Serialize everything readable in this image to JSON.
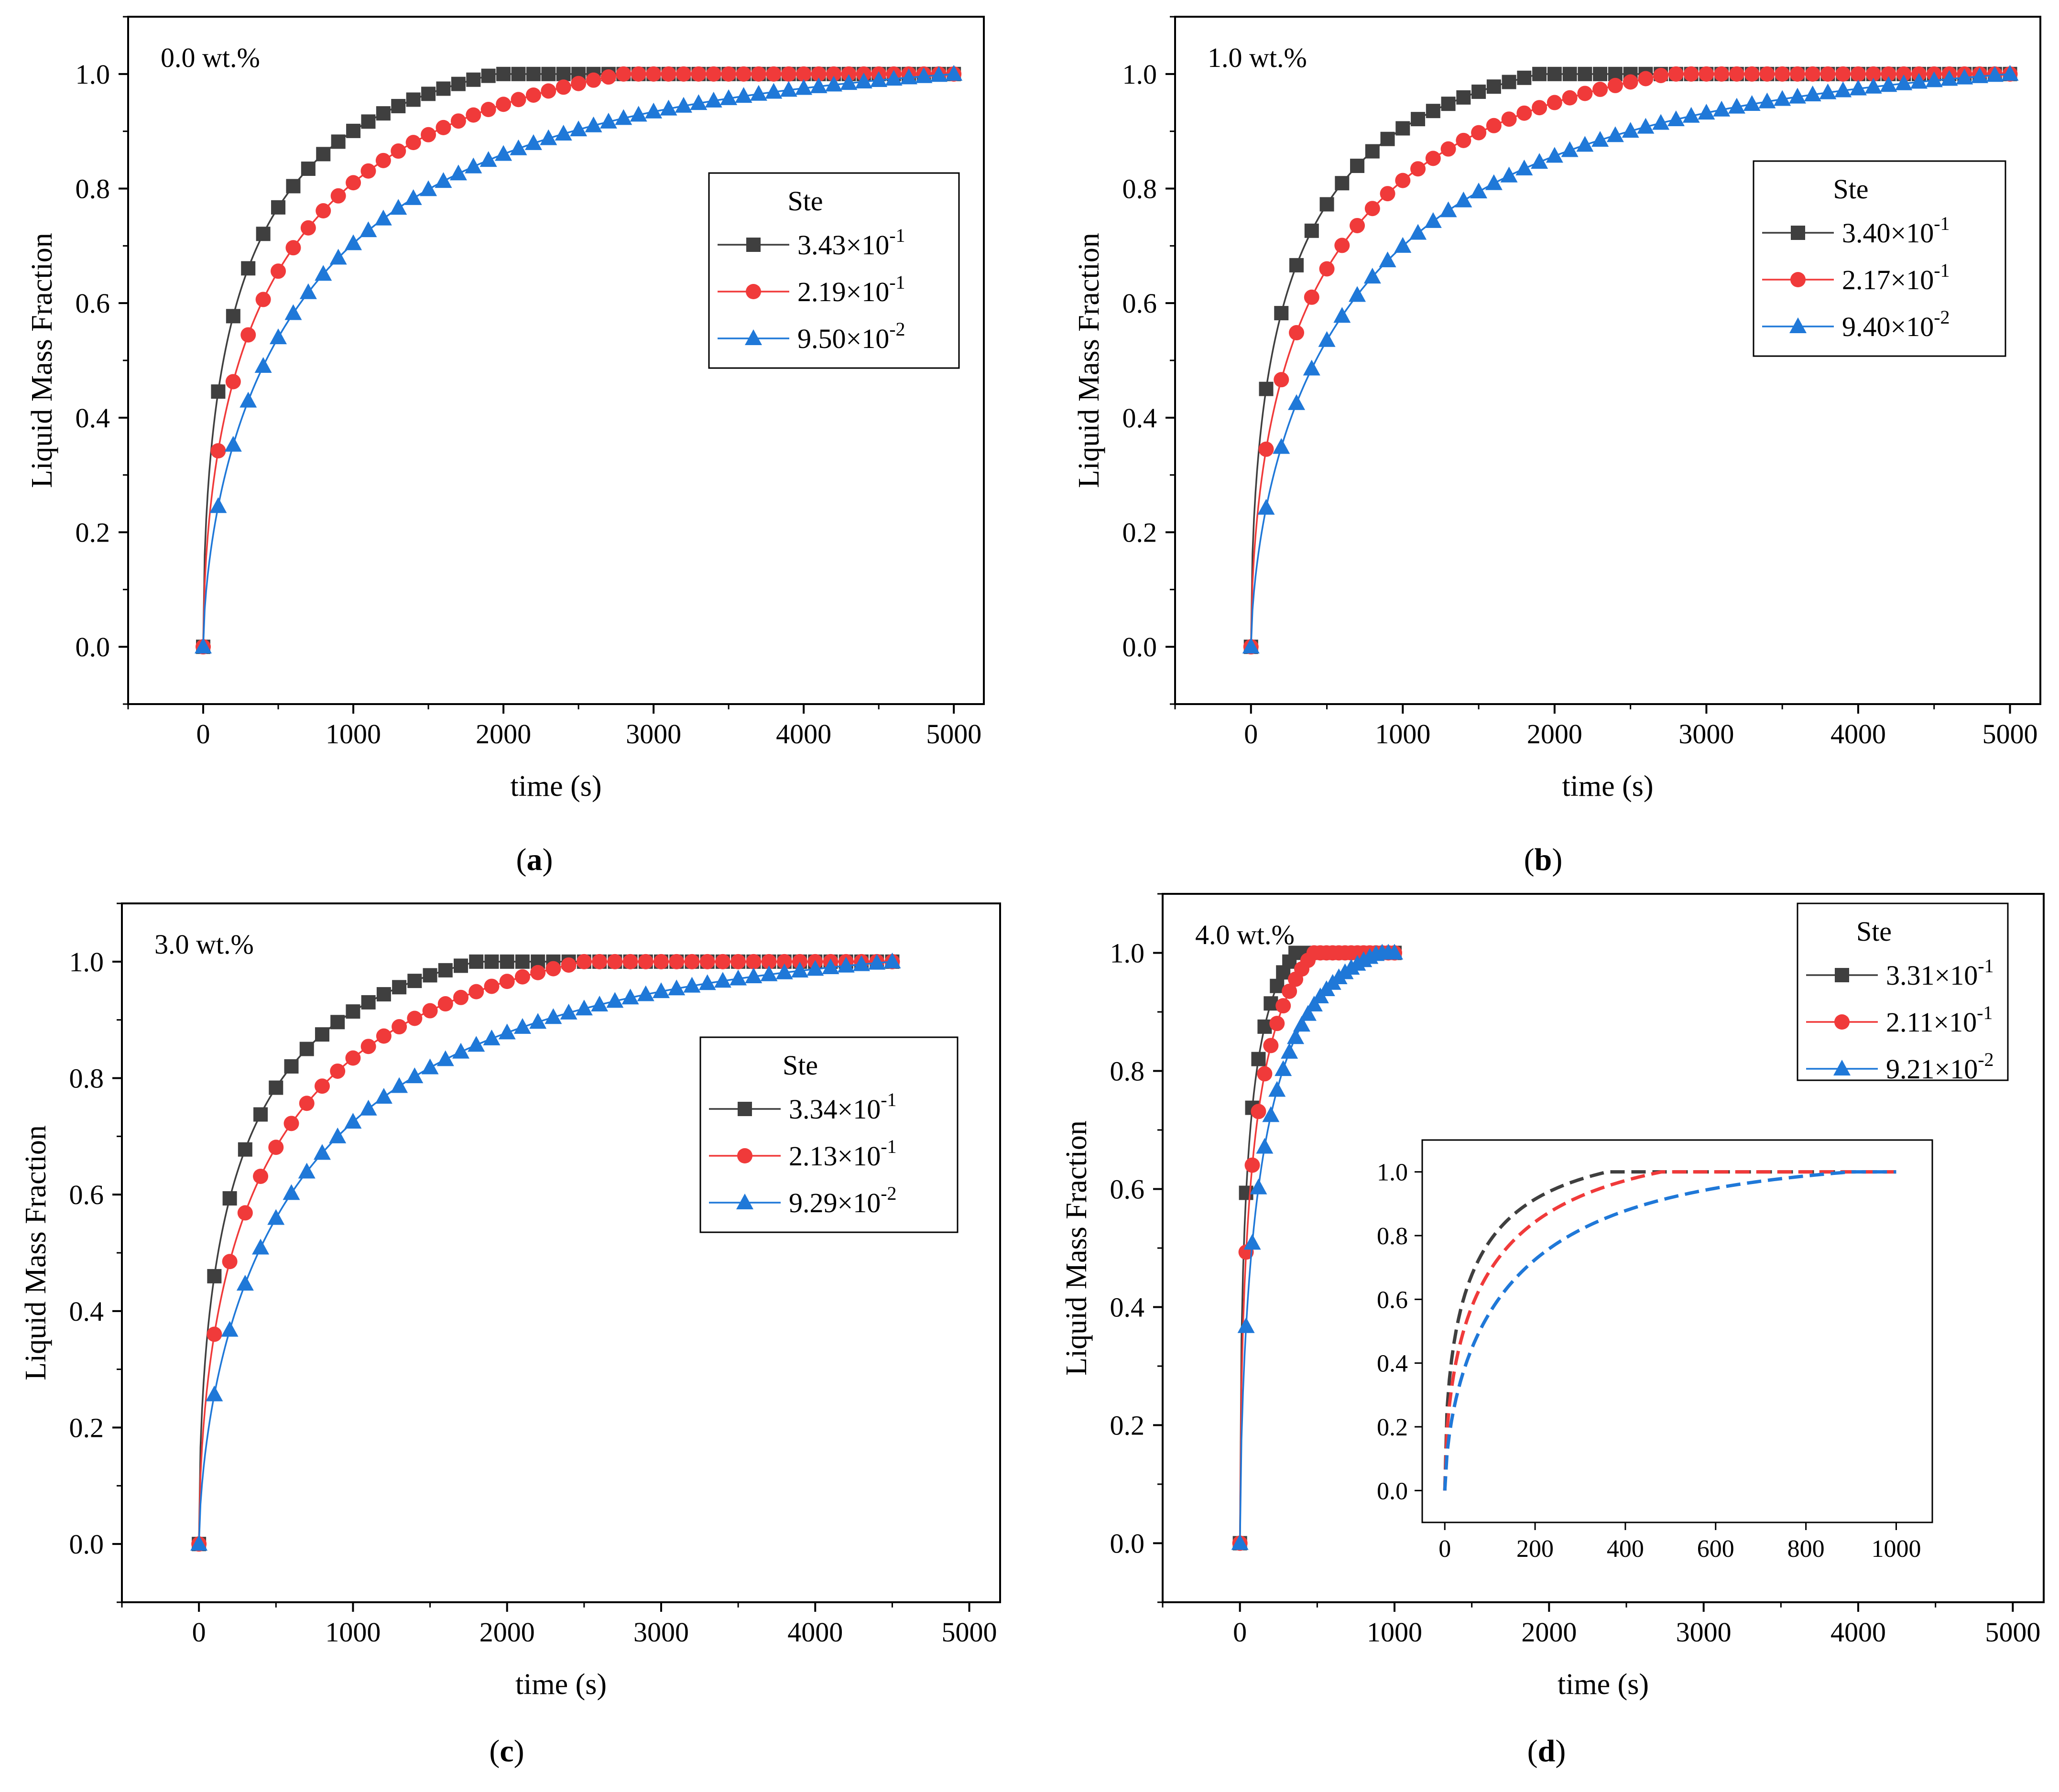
{
  "panels": [
    {
      "id": "a",
      "label_open": "(",
      "label_letter": "a",
      "label_close": ")",
      "annotation": "0.0 wt.%"
    },
    {
      "id": "b",
      "label_open": "(",
      "label_letter": "b",
      "label_close": ")",
      "annotation": "1.0 wt.%"
    },
    {
      "id": "c",
      "label_open": "(",
      "label_letter": "c",
      "label_close": ")",
      "annotation": "3.0 wt.%"
    },
    {
      "id": "d",
      "label_open": "(",
      "label_letter": "d",
      "label_close": ")",
      "annotation": "4.0 wt.%"
    }
  ],
  "colors": {
    "black": "#3f3f3f",
    "red": "#f03a3a",
    "blue": "#1f78d8"
  },
  "chart_data": [
    {
      "type": "line",
      "panel": "a",
      "xlabel": "time (s)",
      "ylabel": "Liquid Mass Fraction",
      "xlim": [
        -500,
        5200
      ],
      "ylim": [
        -0.1,
        1.1
      ],
      "xticks": [
        0,
        1000,
        2000,
        3000,
        4000,
        5000
      ],
      "yticks": [
        0.0,
        0.2,
        0.4,
        0.6,
        0.8,
        1.0
      ],
      "legend_title": "Ste",
      "legend_position": "right",
      "series": [
        {
          "name": "3.43×10-1",
          "mantissa": "3.43",
          "exponent": "-1",
          "marker": "square",
          "color": "#3f3f3f",
          "t_full": 1950,
          "t_end": 5000,
          "k": 2.45,
          "p": 0.52
        },
        {
          "name": "2.19×10-1",
          "mantissa": "2.19",
          "exponent": "-1",
          "marker": "circle",
          "color": "#f03a3a",
          "t_full": 2800,
          "t_end": 5000,
          "k": 2.3,
          "p": 0.55
        },
        {
          "name": "9.50×10-2",
          "mantissa": "9.50",
          "exponent": "-2",
          "marker": "triangle",
          "color": "#1f78d8",
          "t_full": 5000,
          "t_end": 5000,
          "k": 3.0,
          "p": 0.62
        }
      ]
    },
    {
      "type": "line",
      "panel": "b",
      "xlabel": "time (s)",
      "ylabel": "Liquid Mass Fraction",
      "xlim": [
        -500,
        5200
      ],
      "ylim": [
        -0.1,
        1.1
      ],
      "xticks": [
        0,
        1000,
        2000,
        3000,
        4000,
        5000
      ],
      "yticks": [
        0.0,
        0.2,
        0.4,
        0.6,
        0.8,
        1.0
      ],
      "legend_title": "Ste",
      "legend_position": "right",
      "series": [
        {
          "name": "3.40×10-1",
          "mantissa": "3.40",
          "exponent": "-1",
          "marker": "square",
          "color": "#3f3f3f",
          "t_full": 1900,
          "t_end": 5000,
          "k": 2.45,
          "p": 0.52
        },
        {
          "name": "2.17×10-1",
          "mantissa": "2.17",
          "exponent": "-1",
          "marker": "circle",
          "color": "#f03a3a",
          "t_full": 2750,
          "t_end": 5000,
          "k": 2.3,
          "p": 0.55
        },
        {
          "name": "9.40×10-2",
          "mantissa": "9.40",
          "exponent": "-2",
          "marker": "triangle",
          "color": "#1f78d8",
          "t_full": 5000,
          "t_end": 5000,
          "k": 2.95,
          "p": 0.62
        }
      ]
    },
    {
      "type": "line",
      "panel": "c",
      "xlabel": "time (s)",
      "ylabel": "Liquid Mass Fraction",
      "xlim": [
        -500,
        5200
      ],
      "ylim": [
        -0.1,
        1.1
      ],
      "xticks": [
        0,
        1000,
        2000,
        3000,
        4000,
        5000
      ],
      "yticks": [
        0.0,
        0.2,
        0.4,
        0.6,
        0.8,
        1.0
      ],
      "legend_title": "Ste",
      "legend_position": "right",
      "series": [
        {
          "name": "3.34×10-1",
          "mantissa": "3.34",
          "exponent": "-1",
          "marker": "square",
          "color": "#3f3f3f",
          "t_full": 1800,
          "t_end": 4500,
          "k": 2.45,
          "p": 0.52
        },
        {
          "name": "2.13×10-1",
          "mantissa": "2.13",
          "exponent": "-1",
          "marker": "circle",
          "color": "#f03a3a",
          "t_full": 2500,
          "t_end": 4500,
          "k": 2.3,
          "p": 0.55
        },
        {
          "name": "9.29×10-2",
          "mantissa": "9.29",
          "exponent": "-2",
          "marker": "triangle",
          "color": "#1f78d8",
          "t_full": 4500,
          "t_end": 4500,
          "k": 2.95,
          "p": 0.62
        }
      ]
    },
    {
      "type": "line",
      "panel": "d",
      "xlabel": "time (s)",
      "ylabel": "Liquid Mass Fraction",
      "xlim": [
        -500,
        5200
      ],
      "ylim": [
        -0.1,
        1.1
      ],
      "xticks": [
        0,
        1000,
        2000,
        3000,
        4000,
        5000
      ],
      "yticks": [
        0.0,
        0.2,
        0.4,
        0.6,
        0.8,
        1.0
      ],
      "legend_title": "Ste",
      "legend_position": "top-right",
      "series": [
        {
          "name": "3.31×10-1",
          "mantissa": "3.31",
          "exponent": "-1",
          "marker": "square",
          "color": "#3f3f3f",
          "t_full": 360,
          "t_end": 1000,
          "k": 2.45,
          "p": 0.52,
          "sample_dt": 40
        },
        {
          "name": "2.11×10-1",
          "mantissa": "2.11",
          "exponent": "-1",
          "marker": "circle",
          "color": "#f03a3a",
          "t_full": 480,
          "t_end": 1000,
          "k": 2.3,
          "p": 0.55,
          "sample_dt": 40
        },
        {
          "name": "9.21×10-2",
          "mantissa": "9.21",
          "exponent": "-2",
          "marker": "triangle",
          "color": "#1f78d8",
          "t_full": 900,
          "t_end": 1000,
          "k": 2.95,
          "p": 0.62,
          "sample_dt": 40
        }
      ],
      "inset": {
        "type": "line",
        "xlim": [
          -50,
          1080
        ],
        "ylim": [
          -0.1,
          1.1
        ],
        "xticks": [
          0,
          200,
          400,
          600,
          800,
          1000
        ],
        "yticks": [
          0.0,
          0.2,
          0.4,
          0.6,
          0.8,
          1.0
        ],
        "line_style": "dashed"
      }
    }
  ]
}
